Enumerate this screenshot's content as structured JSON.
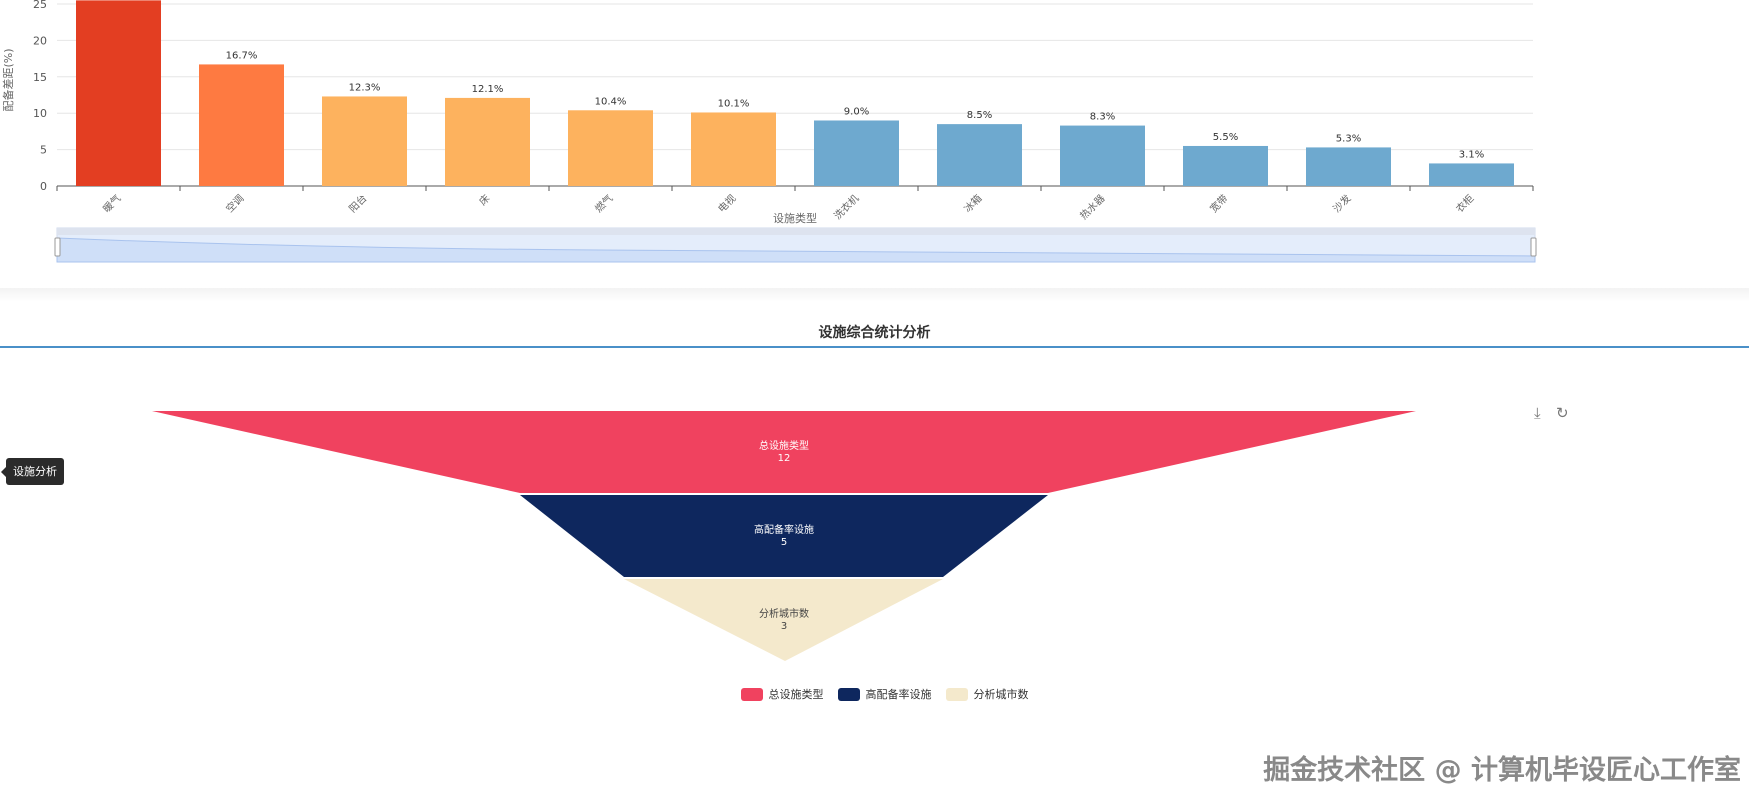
{
  "chart_data": [
    {
      "type": "bar",
      "categories": [
        "暖气",
        "空调",
        "阳台",
        "床",
        "燃气",
        "电视",
        "洗衣机",
        "冰箱",
        "热水器",
        "宽带",
        "沙发",
        "衣柜"
      ],
      "values": [
        26,
        16.7,
        12.3,
        12.1,
        10.4,
        10.1,
        9.0,
        8.5,
        8.3,
        5.5,
        5.3,
        3.1
      ],
      "data_labels": [
        "",
        "16.7%",
        "12.3%",
        "12.1%",
        "10.4%",
        "10.1%",
        "9.0%",
        "8.5%",
        "8.3%",
        "5.5%",
        "5.3%",
        "3.1%"
      ],
      "colors": [
        "#e33e22",
        "#fe7a41",
        "#fdb25e",
        "#fdb25e",
        "#fdb25e",
        "#fdb25e",
        "#6ea9cf",
        "#6ea9cf",
        "#6ea9cf",
        "#6ea9cf",
        "#6ea9cf",
        "#6ea9cf"
      ],
      "xlabel": "设施类型",
      "ylabel": "配备差距(%)",
      "yticks": [
        "0",
        "5",
        "10",
        "15",
        "20",
        "25"
      ],
      "ylim": [
        0,
        25
      ],
      "grid": true,
      "datazoom": true
    },
    {
      "type": "funnel",
      "title": "设施综合统计分析",
      "series": [
        {
          "name": "总设施类型",
          "value": "12",
          "color": "#f0425f"
        },
        {
          "name": "高配备率设施",
          "value": "5",
          "color": "#0e275e"
        },
        {
          "name": "分析城市数",
          "value": "3",
          "color": "#f4e9cc"
        }
      ],
      "legend": "bottom"
    }
  ],
  "tooltip": "设施分析",
  "toolbox": {
    "download_icon": "download-icon",
    "refresh_icon": "refresh-icon"
  },
  "watermark": "掘金技术社区 @ 计算机毕设匠心工作室"
}
